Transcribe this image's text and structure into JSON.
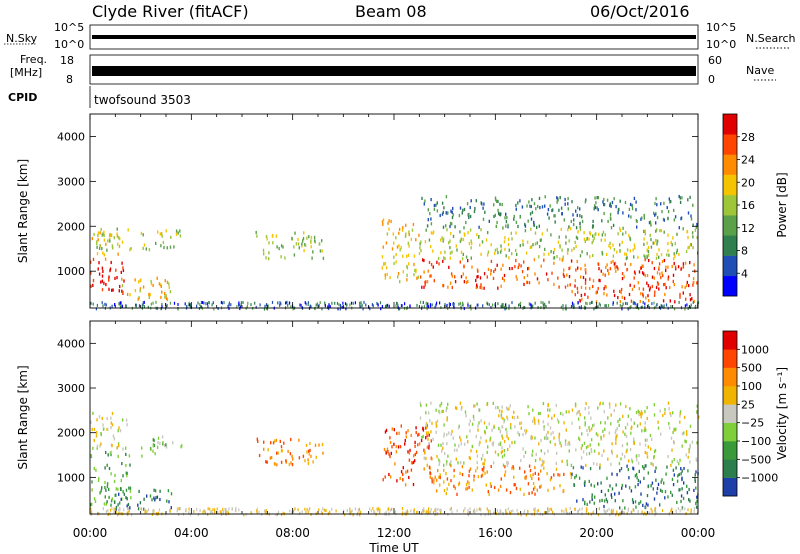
{
  "header": {
    "station": "Clyde River (fitACF)",
    "beam": "Beam 08",
    "date": "06/Oct/2016"
  },
  "param_panels": {
    "nsky_label": "N.Sky",
    "nsky_ticks": [
      "10^5",
      "10^0"
    ],
    "nsearch_label": "N.Search",
    "freq_label_1": "Freq.",
    "freq_label_2": "[MHz]",
    "freq_ticks": [
      "18",
      "8"
    ],
    "nave_label": "Nave",
    "nave_ticks": [
      "60",
      "0"
    ],
    "cpid_label": "CPID",
    "cpid_value": "twofsound 3503"
  },
  "chart_data": [
    {
      "type": "heatmap",
      "name": "power",
      "xlabel": "Time UT",
      "ylabel": "Slant Range [km]",
      "xlim": [
        0,
        24
      ],
      "ylim": [
        180,
        4500
      ],
      "x_ticks": [
        "00:00",
        "04:00",
        "08:00",
        "12:00",
        "16:00",
        "20:00",
        "00:00"
      ],
      "y_ticks": [
        1000,
        2000,
        3000,
        4000
      ],
      "colorbar_label": "Power [dB]",
      "colorbar_ticks": [
        "28",
        "24",
        "20",
        "16",
        "12",
        "8",
        "4"
      ],
      "colorbar_colors": [
        "#0000ff",
        "#1f4fb4",
        "#2f7f4f",
        "#5aa14a",
        "#9ec639",
        "#f5c400",
        "#ff8c00",
        "#ff4500",
        "#e00000"
      ],
      "scatter_regions": [
        {
          "t": [
            0.0,
            1.4
          ],
          "r": [
            500,
            1300
          ],
          "level": 8
        },
        {
          "t": [
            0.0,
            1.2
          ],
          "r": [
            1300,
            1900
          ],
          "level": 5
        },
        {
          "t": [
            0.2,
            1.6
          ],
          "r": [
            1500,
            2000
          ],
          "level": 4
        },
        {
          "t": [
            1.0,
            3.2
          ],
          "r": [
            400,
            900
          ],
          "level": 5
        },
        {
          "t": [
            2.0,
            3.6
          ],
          "r": [
            1500,
            1950
          ],
          "level": 4
        },
        {
          "t": [
            6.5,
            9.2
          ],
          "r": [
            1300,
            1900
          ],
          "level": 4
        },
        {
          "t": [
            11.5,
            13.0
          ],
          "r": [
            800,
            2200
          ],
          "level": 5
        },
        {
          "t": [
            13.0,
            24.0
          ],
          "r": [
            650,
            1300
          ],
          "level": 7
        },
        {
          "t": [
            13.0,
            24.0
          ],
          "r": [
            1300,
            2000
          ],
          "level": 4
        },
        {
          "t": [
            13.0,
            24.0
          ],
          "r": [
            2000,
            2700
          ],
          "level": 2
        },
        {
          "t": [
            19.0,
            24.0
          ],
          "r": [
            350,
            700
          ],
          "level": 7
        }
      ]
    },
    {
      "type": "heatmap",
      "name": "velocity",
      "xlabel": "Time UT",
      "ylabel": "Slant Range [km]",
      "xlim": [
        0,
        24
      ],
      "ylim": [
        180,
        4500
      ],
      "x_ticks": [
        "00:00",
        "04:00",
        "08:00",
        "12:00",
        "16:00",
        "20:00",
        "00:00"
      ],
      "y_ticks": [
        1000,
        2000,
        3000,
        4000
      ],
      "colorbar_label": "Velocity [m s⁻¹]",
      "colorbar_ticks": [
        "1000",
        "500",
        "100",
        "25",
        "−25",
        "−100",
        "−500",
        "−1000"
      ],
      "colorbar_colors": [
        "#1f3fa8",
        "#2c7f4c",
        "#3a9a3a",
        "#7fcf3a",
        "#c8c8c0",
        "#f0b400",
        "#ff8c00",
        "#ff4500",
        "#e00000"
      ],
      "scatter_regions": [
        {
          "t": [
            0.0,
            1.6
          ],
          "r": [
            400,
            1600
          ],
          "level": 2
        },
        {
          "t": [
            0.0,
            1.5
          ],
          "r": [
            1600,
            2500
          ],
          "level": 4
        },
        {
          "t": [
            2.0,
            3.6
          ],
          "r": [
            1500,
            1950
          ],
          "level": 3
        },
        {
          "t": [
            1.0,
            3.2
          ],
          "r": [
            300,
            800
          ],
          "level": 1
        },
        {
          "t": [
            6.5,
            9.2
          ],
          "r": [
            1300,
            1900
          ],
          "level": 6
        },
        {
          "t": [
            11.5,
            13.5
          ],
          "r": [
            800,
            2200
          ],
          "level": 7
        },
        {
          "t": [
            13.5,
            19.0
          ],
          "r": [
            650,
            1300
          ],
          "level": 6
        },
        {
          "t": [
            13.0,
            24.0
          ],
          "r": [
            1300,
            2700
          ],
          "level": 4
        },
        {
          "t": [
            19.0,
            24.0
          ],
          "r": [
            350,
            1300
          ],
          "level": 1
        }
      ]
    }
  ]
}
